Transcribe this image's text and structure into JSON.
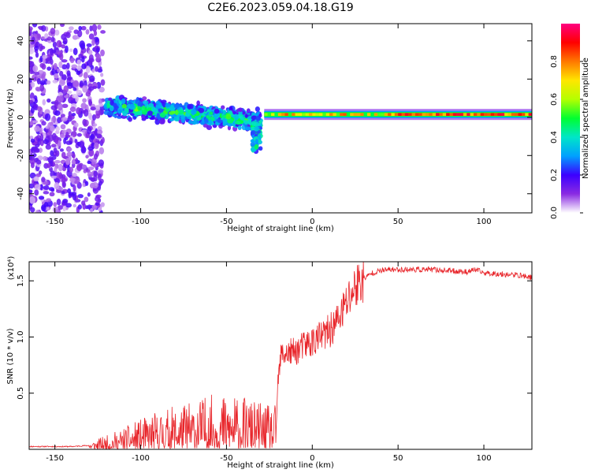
{
  "title": "C2E6.2023.059.04.18.G19",
  "chart_data": [
    {
      "type": "heatmap",
      "x": {
        "label": "Height of straight line (km)",
        "range": [
          -165,
          128
        ],
        "ticks": [
          -150,
          -100,
          -50,
          0,
          50,
          100
        ]
      },
      "y": {
        "label": "Frequency (Hz)",
        "range": [
          -50,
          49
        ],
        "ticks": [
          -40,
          -20,
          0,
          20,
          40
        ]
      },
      "colorbar": {
        "label": "Normalized spectral amplitude",
        "range": [
          0,
          1
        ],
        "ticks": [
          "0.0",
          "0.2",
          "0.4",
          "0.6",
          "0.8"
        ],
        "colormap": [
          "#ffffff",
          "#8a2be2",
          "#3c00ff",
          "#00a0ff",
          "#00e6c8",
          "#00ff30",
          "#b4ff00",
          "#ffe600",
          "#ff7800",
          "#ff0000",
          "#ff0080"
        ]
      },
      "features": [
        {
          "name": "broadband noise",
          "x_range": [
            -165,
            -122
          ],
          "y_range": [
            -50,
            49
          ],
          "amplitude": 0.15
        },
        {
          "name": "signal band",
          "x_start": -120,
          "x_end": -30,
          "y_start": 6,
          "y_end": -2,
          "half_width": 7,
          "amplitude": 0.45
        },
        {
          "name": "tail",
          "x_range": [
            -35,
            -30
          ],
          "y_range": [
            -18,
            -2
          ],
          "amplitude": 0.35
        },
        {
          "name": "narrow carrier",
          "x_range": [
            -28,
            128
          ],
          "y": 1.5,
          "half_width": 1.5,
          "amplitude": 0.9
        }
      ]
    },
    {
      "type": "line",
      "x": {
        "label": "Height of straight line (km)",
        "range": [
          -165,
          128
        ],
        "ticks": [
          -150,
          -100,
          -50,
          0,
          50,
          100
        ]
      },
      "y": {
        "label": "SNR (10 * v/v)",
        "multiplier": "(x10⁴)",
        "range": [
          0,
          1.67
        ],
        "ticks": [
          "0.5",
          "1.0",
          "1.5"
        ]
      },
      "series": [
        {
          "color": "#e8262b",
          "x": [
            -165,
            -140,
            -130,
            -125,
            -120,
            -110,
            -100,
            -90,
            -80,
            -70,
            -60,
            -50,
            -45,
            -40,
            -35,
            -30,
            -25,
            -22,
            -21,
            -20,
            -18,
            -15,
            -10,
            -5,
            0,
            5,
            10,
            15,
            20,
            25,
            30,
            35,
            40,
            45,
            50,
            60,
            70,
            80,
            90,
            95,
            100,
            110,
            120,
            128
          ],
          "y": [
            0.02,
            0.02,
            0.03,
            0.04,
            0.05,
            0.08,
            0.11,
            0.14,
            0.16,
            0.18,
            0.2,
            0.2,
            0.2,
            0.19,
            0.18,
            0.17,
            0.16,
            0.15,
            0.2,
            0.6,
            0.85,
            0.85,
            0.87,
            0.92,
            0.96,
            1.0,
            1.05,
            1.15,
            1.3,
            1.45,
            1.52,
            1.57,
            1.59,
            1.6,
            1.6,
            1.6,
            1.6,
            1.59,
            1.58,
            1.6,
            1.57,
            1.56,
            1.55,
            1.53
          ]
        }
      ]
    }
  ]
}
